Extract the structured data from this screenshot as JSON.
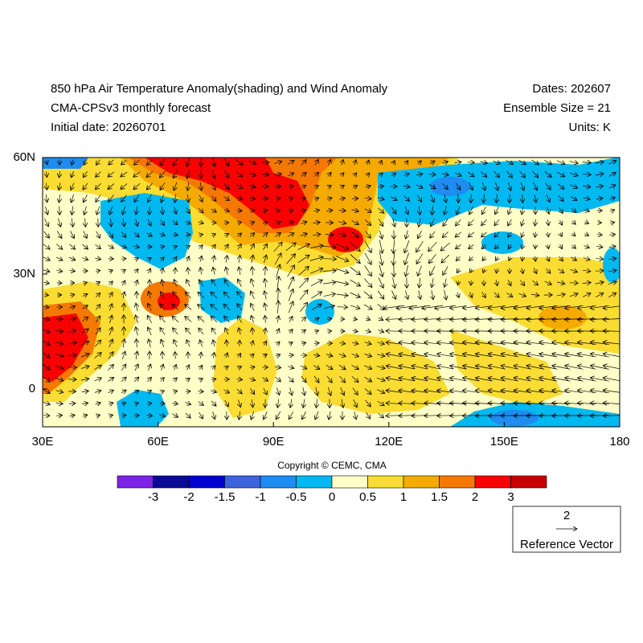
{
  "title": {
    "left": [
      "850 hPa Air Temperature Anomaly(shading) and Wind Anomaly",
      "CMA-CPSv3 monthly forecast",
      "Initial date: 20260701"
    ],
    "right": [
      "Dates: 202607",
      "Ensemble Size = 21",
      "Units: K"
    ]
  },
  "map": {
    "x_labels": [
      "30E",
      "60E",
      "90E",
      "120E",
      "150E",
      "180"
    ],
    "y_labels": [
      "60N",
      "30N",
      "0"
    ]
  },
  "copyright": "Copyright © CEMC, CMA",
  "colorbar": {
    "colors": [
      "#7d22e6",
      "#0a0a96",
      "#0000d2",
      "#3c64dc",
      "#1e8cf0",
      "#00b9f0",
      "#ffffc8",
      "#fadc32",
      "#f5aa00",
      "#f57800",
      "#fa0000",
      "#c80000"
    ],
    "labels": [
      "-3",
      "-2",
      "-1.5",
      "-1",
      "-0.5",
      "0",
      "0.5",
      "1",
      "1.5",
      "2",
      "3"
    ]
  },
  "reference_vector": {
    "magnitude": "2",
    "label": "Reference Vector"
  }
}
